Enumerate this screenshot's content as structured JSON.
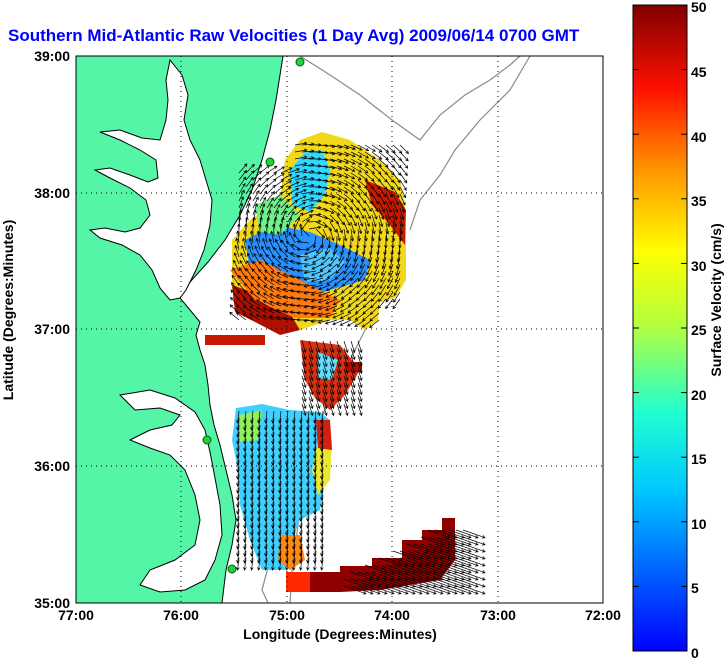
{
  "title": "Southern Mid-Atlantic Raw Velocities (1 Day Avg) 2009/06/14 0700 GMT",
  "map": {
    "xlabel": "Longitude (Degrees:Minutes)",
    "ylabel": "Latitude (Degrees:Minutes)",
    "x_ticks": [
      "77:00",
      "76:00",
      "75:00",
      "74:00",
      "73:00",
      "72:00"
    ],
    "y_ticks": [
      "39:00",
      "38:00",
      "37:00",
      "36:00",
      "35:00"
    ],
    "lon_range": [
      -77,
      -72
    ],
    "lat_range": [
      35,
      39
    ],
    "land_color": "#55f5a8",
    "station_color": "#22d040",
    "grid": true
  },
  "colorbar": {
    "label": "Surface Velocity (cm/s)",
    "ticks": [
      "0",
      "5",
      "10",
      "15",
      "20",
      "25",
      "30",
      "35",
      "40",
      "45",
      "50"
    ],
    "range": [
      0,
      50
    ],
    "colormap": "jet"
  }
}
